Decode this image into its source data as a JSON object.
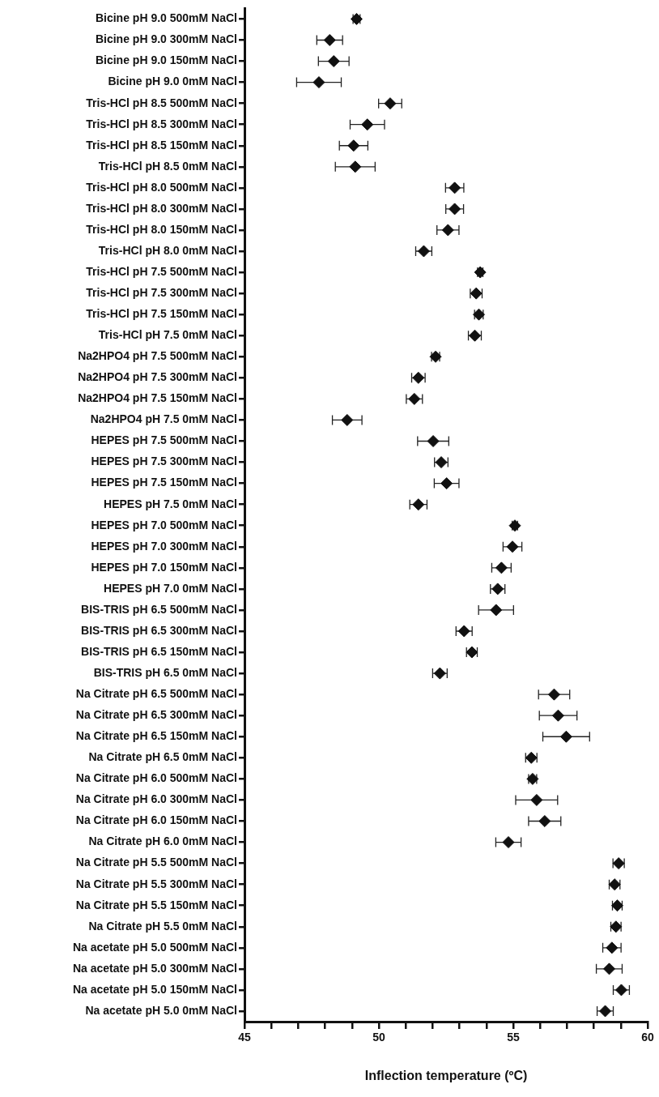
{
  "chart_data": {
    "type": "scatter",
    "orientation": "horizontal",
    "xlabel": "Inflection temperature (ºC)",
    "categories": [
      "Bicine pH 9.0 500mM NaCl",
      "Bicine pH 9.0 300mM NaCl",
      "Bicine pH 9.0 150mM NaCl",
      "Bicine pH 9.0 0mM NaCl",
      "Tris-HCl pH 8.5 500mM NaCl",
      "Tris-HCl pH 8.5 300mM NaCl",
      "Tris-HCl pH 8.5 150mM NaCl",
      "Tris-HCl pH 8.5 0mM NaCl",
      "Tris-HCl pH 8.0 500mM NaCl",
      "Tris-HCl pH 8.0 300mM NaCl",
      "Tris-HCl pH 8.0 150mM NaCl",
      "Tris-HCl pH 8.0 0mM NaCl",
      "Tris-HCl pH 7.5 500mM NaCl",
      "Tris-HCl pH 7.5 300mM NaCl",
      "Tris-HCl pH 7.5 150mM NaCl",
      "Tris-HCl pH 7.5 0mM NaCl",
      "Na2HPO4 pH 7.5 500mM NaCl",
      "Na2HPO4 pH 7.5 300mM NaCl",
      "Na2HPO4 pH 7.5 150mM NaCl",
      "Na2HPO4 pH 7.5 0mM NaCl",
      "HEPES pH 7.5 500mM NaCl",
      "HEPES pH 7.5 300mM NaCl",
      "HEPES pH 7.5 150mM NaCl",
      "HEPES pH 7.5 0mM NaCl",
      "HEPES pH 7.0 500mM NaCl",
      "HEPES pH 7.0 300mM NaCl",
      "HEPES pH 7.0 150mM NaCl",
      "HEPES pH 7.0 0mM NaCl",
      "BIS-TRIS pH 6.5 500mM NaCl",
      "BIS-TRIS pH 6.5 300mM NaCl",
      "BIS-TRIS pH 6.5 150mM NaCl",
      "BIS-TRIS pH 6.5 0mM NaCl",
      "Na Citrate pH 6.5 500mM NaCl",
      "Na Citrate pH 6.5 300mM NaCl",
      "Na Citrate pH 6.5 150mM NaCl",
      "Na Citrate pH 6.5 0mM NaCl",
      "Na Citrate pH 6.0 500mM NaCl",
      "Na Citrate pH 6.0 300mM NaCl",
      "Na Citrate pH 6.0 150mM NaCl",
      "Na Citrate pH 6.0 0mM NaCl",
      "Na Citrate pH 5.5 500mM NaCl",
      "Na Citrate pH 5.5 300mM NaCl",
      "Na Citrate pH 5.5 150mM NaCl",
      "Na Citrate pH 5.5 0mM NaCl",
      "Na acetate pH 5.0 500mM NaCl",
      "Na acetate pH 5.0 300mM NaCl",
      "Na acetate pH 5.0 150mM NaCl",
      "Na acetate pH 5.0 0mM NaCl"
    ],
    "values": [
      49.17,
      48.17,
      48.32,
      47.77,
      50.42,
      49.57,
      49.06,
      49.12,
      52.82,
      52.82,
      52.57,
      51.67,
      53.77,
      53.62,
      53.72,
      53.57,
      52.11,
      51.47,
      51.32,
      48.82,
      52.02,
      52.32,
      52.52,
      51.47,
      55.06,
      54.97,
      54.56,
      54.42,
      54.36,
      53.17,
      53.46,
      52.27,
      56.52,
      56.67,
      56.97,
      55.67,
      55.72,
      55.87,
      56.17,
      54.82,
      58.92,
      58.77,
      58.87,
      58.82,
      58.67,
      58.57,
      59.02,
      58.42
    ],
    "errors": [
      0.13,
      0.48,
      0.57,
      0.83,
      0.43,
      0.64,
      0.53,
      0.74,
      0.34,
      0.33,
      0.41,
      0.3,
      0.1,
      0.22,
      0.16,
      0.24,
      0.15,
      0.25,
      0.3,
      0.55,
      0.58,
      0.25,
      0.46,
      0.32,
      0.1,
      0.35,
      0.36,
      0.27,
      0.65,
      0.3,
      0.2,
      0.27,
      0.58,
      0.7,
      0.87,
      0.21,
      0.15,
      0.78,
      0.6,
      0.47,
      0.21,
      0.2,
      0.18,
      0.19,
      0.34,
      0.48,
      0.3,
      0.3
    ],
    "color": "#111111",
    "marker": "diamond",
    "grid": false,
    "xlim": [
      45,
      60
    ],
    "xticks": [
      45,
      {
        "value": 46,
        "label": null
      },
      {
        "value": 47,
        "label": null
      },
      {
        "value": 48,
        "label": null
      },
      {
        "value": 49,
        "label": null
      },
      50,
      {
        "value": 51,
        "label": null
      },
      {
        "value": 52,
        "label": null
      },
      {
        "value": 53,
        "label": null
      },
      {
        "value": 54,
        "label": null
      },
      55,
      {
        "value": 56,
        "label": null
      },
      {
        "value": 57,
        "label": null
      },
      {
        "value": 58,
        "label": null
      },
      {
        "value": 59,
        "label": null
      },
      60
    ]
  }
}
